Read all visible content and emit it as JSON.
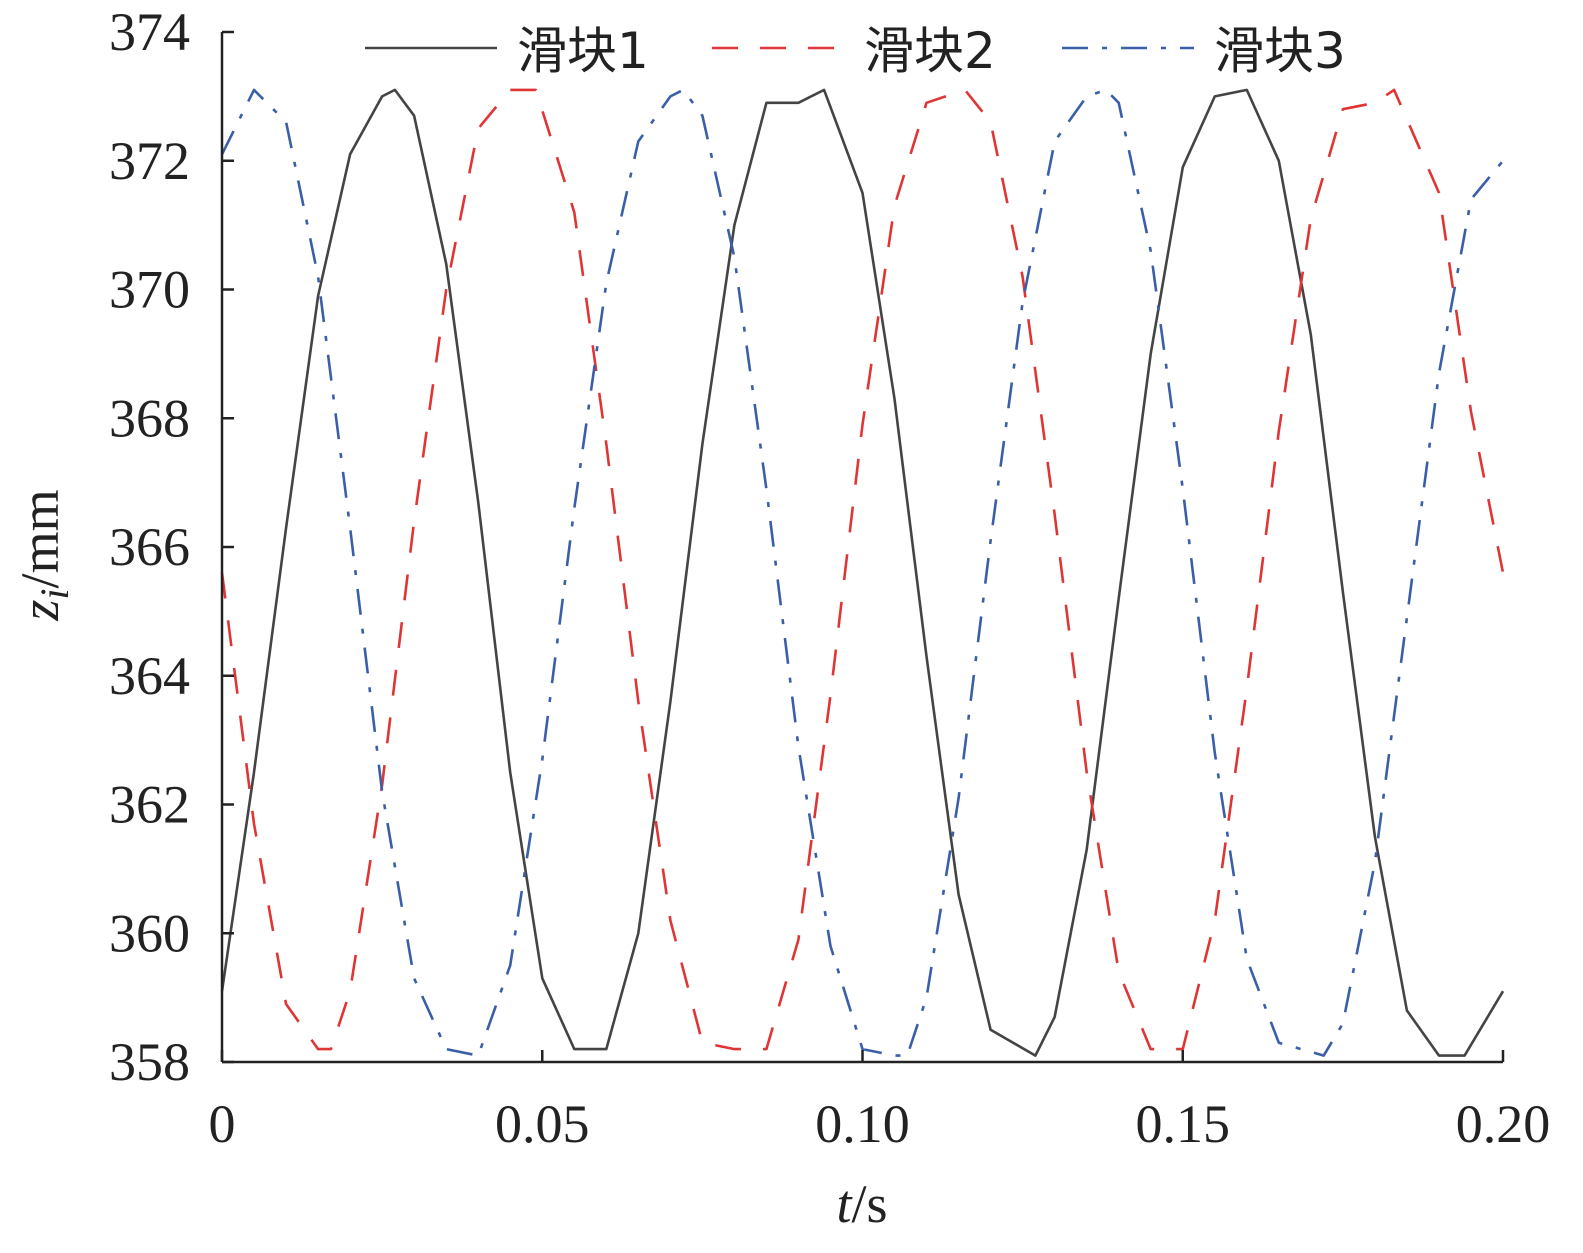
{
  "chart_data": {
    "type": "line",
    "xlabel_italic": "t",
    "xlabel_unit": "/s",
    "ylabel_var": "z",
    "ylabel_sub": "i",
    "ylabel_unit": "/mm",
    "xlim": [
      0,
      0.2
    ],
    "ylim": [
      358,
      374
    ],
    "xticks": [
      0,
      0.05,
      0.1,
      0.15,
      0.2
    ],
    "xtick_labels": [
      "0",
      "0.05",
      "0.10",
      "0.15",
      "0.20"
    ],
    "yticks": [
      358,
      360,
      362,
      364,
      366,
      368,
      370,
      372,
      374
    ],
    "ytick_labels": [
      "358",
      "360",
      "362",
      "364",
      "366",
      "368",
      "370",
      "372",
      "374"
    ],
    "grid": false,
    "legend_position": "top",
    "series": [
      {
        "name": "滑块1",
        "color": "#444444",
        "style": "solid",
        "x": [
          0,
          0.005,
          0.01,
          0.015,
          0.02,
          0.025,
          0.027,
          0.03,
          0.035,
          0.04,
          0.045,
          0.05,
          0.055,
          0.06,
          0.065,
          0.07,
          0.075,
          0.08,
          0.085,
          0.09,
          0.094,
          0.1,
          0.105,
          0.11,
          0.115,
          0.12,
          0.127,
          0.13,
          0.135,
          0.14,
          0.145,
          0.15,
          0.155,
          0.16,
          0.165,
          0.17,
          0.175,
          0.18,
          0.185,
          0.19,
          0.194,
          0.2
        ],
        "y": [
          359.1,
          362.5,
          366.3,
          369.9,
          372.1,
          373.0,
          373.1,
          372.7,
          370.4,
          366.7,
          362.5,
          359.3,
          358.2,
          358.2,
          360.0,
          363.6,
          367.6,
          371.0,
          372.9,
          372.9,
          373.1,
          371.5,
          368.3,
          364.3,
          360.6,
          358.5,
          358.1,
          358.7,
          361.3,
          365.2,
          369.0,
          371.9,
          373.0,
          373.1,
          372.0,
          369.3,
          365.3,
          361.5,
          358.8,
          358.1,
          358.1,
          359.1
        ]
      },
      {
        "name": "滑块2",
        "color": "#e03535",
        "style": "dash",
        "x": [
          0,
          0.005,
          0.01,
          0.015,
          0.017,
          0.02,
          0.025,
          0.03,
          0.035,
          0.04,
          0.045,
          0.049,
          0.055,
          0.06,
          0.065,
          0.07,
          0.075,
          0.08,
          0.085,
          0.09,
          0.095,
          0.1,
          0.105,
          0.11,
          0.116,
          0.12,
          0.125,
          0.13,
          0.135,
          0.14,
          0.145,
          0.15,
          0.155,
          0.16,
          0.165,
          0.17,
          0.175,
          0.18,
          0.183,
          0.19,
          0.195,
          0.2
        ],
        "y": [
          365.6,
          361.7,
          358.9,
          358.2,
          358.2,
          359.1,
          362.3,
          366.4,
          370.0,
          372.5,
          373.1,
          373.1,
          371.2,
          367.6,
          363.6,
          360.2,
          358.3,
          358.2,
          358.2,
          359.9,
          363.7,
          367.9,
          371.3,
          372.9,
          373.1,
          372.6,
          370.2,
          366.5,
          362.5,
          359.4,
          358.2,
          358.2,
          360.2,
          363.8,
          367.8,
          371.1,
          372.8,
          372.9,
          373.1,
          371.5,
          368.1,
          365.6
        ]
      },
      {
        "name": "滑块3",
        "color": "#3a5fa8",
        "style": "dashdot",
        "x": [
          0,
          0.005,
          0.01,
          0.015,
          0.02,
          0.025,
          0.03,
          0.035,
          0.04,
          0.045,
          0.05,
          0.055,
          0.06,
          0.065,
          0.07,
          0.072,
          0.075,
          0.08,
          0.085,
          0.09,
          0.095,
          0.1,
          0.105,
          0.107,
          0.11,
          0.115,
          0.12,
          0.125,
          0.13,
          0.135,
          0.138,
          0.14,
          0.145,
          0.15,
          0.155,
          0.16,
          0.165,
          0.172,
          0.175,
          0.18,
          0.185,
          0.19,
          0.195,
          0.2
        ],
        "y": [
          372.1,
          373.1,
          372.6,
          370.2,
          366.3,
          362.2,
          359.3,
          358.2,
          358.1,
          359.5,
          362.7,
          366.6,
          370.1,
          372.3,
          373.0,
          373.1,
          372.7,
          370.5,
          366.9,
          362.9,
          359.8,
          358.2,
          358.1,
          358.1,
          359.0,
          362.1,
          366.1,
          369.8,
          372.3,
          373.0,
          373.1,
          372.9,
          370.6,
          366.9,
          362.8,
          359.6,
          358.3,
          358.1,
          358.6,
          361.1,
          364.9,
          368.7,
          371.4,
          372.0
        ]
      }
    ]
  }
}
